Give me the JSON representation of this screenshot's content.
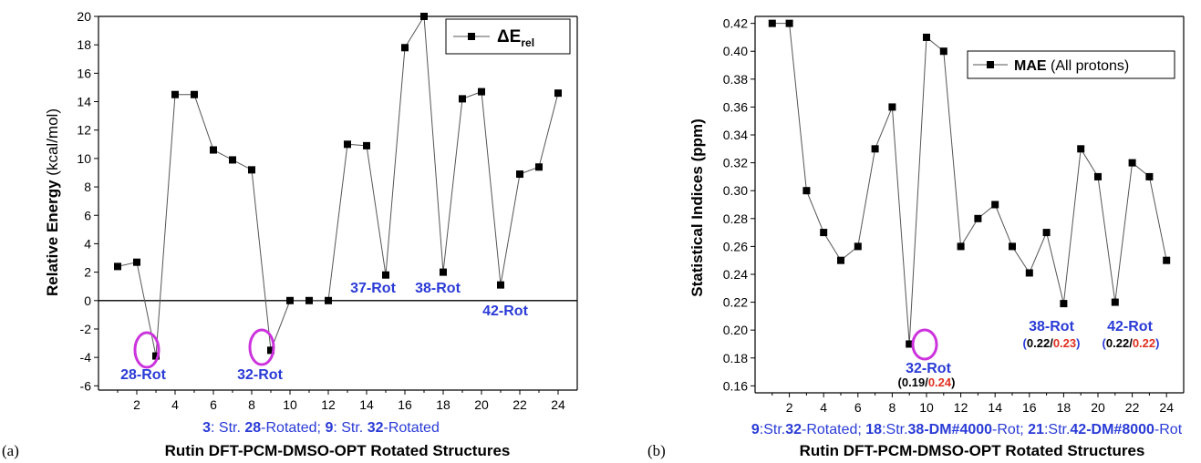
{
  "chart_data": [
    {
      "type": "line",
      "panel_label": "(a)",
      "xlabel": "Rutin DFT-PCM-DMSO-OPT Rotated Structures",
      "ylabel_bold": "Relative Energy",
      "ylabel_unit": "(kcal/mol)",
      "xlim": [
        0,
        25
      ],
      "ylim": [
        -6.3,
        20
      ],
      "xticks": [
        2,
        4,
        6,
        8,
        10,
        12,
        14,
        16,
        18,
        20,
        22,
        24
      ],
      "yticks": [
        -6,
        -4,
        -2,
        0,
        2,
        4,
        6,
        8,
        10,
        12,
        14,
        16,
        18,
        20
      ],
      "legend": {
        "main": "ΔE",
        "sub": "rel",
        "position": "top-right"
      },
      "series": [
        {
          "name": "ΔErel",
          "x": [
            1,
            2,
            3,
            4,
            5,
            6,
            7,
            8,
            9,
            10,
            11,
            12,
            13,
            14,
            15,
            16,
            17,
            18,
            19,
            20,
            21,
            22,
            23,
            24
          ],
          "y": [
            2.4,
            2.7,
            -3.9,
            14.5,
            14.5,
            10.6,
            9.9,
            9.2,
            -3.5,
            0,
            0,
            0,
            11.0,
            10.9,
            1.8,
            17.8,
            20.0,
            2.0,
            14.2,
            14.7,
            1.1,
            8.9,
            9.4,
            14.6
          ]
        }
      ],
      "reference_line": 0,
      "highlight_x": [
        3,
        9
      ],
      "annotations": [
        "28-Rot",
        "32-Rot",
        "37-Rot",
        "38-Rot",
        "42-Rot"
      ],
      "caption": {
        "n1": "3",
        "t1": ": Str. ",
        "n2": "28",
        "t2": "-Rotated;",
        "n3": "9",
        "t3": ": Str. ",
        "n4": "32",
        "t4": "-Rotated"
      }
    },
    {
      "type": "line",
      "panel_label": "(b)",
      "xlabel": "Rutin DFT-PCM-DMSO-OPT Rotated Structures",
      "ylabel": "Statistical Indices (ppm)",
      "xlim": [
        0,
        25
      ],
      "ylim": [
        0.155,
        0.425
      ],
      "xticks": [
        2,
        4,
        6,
        8,
        10,
        12,
        14,
        16,
        18,
        20,
        22,
        24
      ],
      "yticks": [
        0.16,
        0.18,
        0.2,
        0.22,
        0.24,
        0.26,
        0.28,
        0.3,
        0.32,
        0.34,
        0.36,
        0.38,
        0.4,
        0.42
      ],
      "legend": {
        "main": "MAE",
        "rest": " (All protons)",
        "position": "top-right"
      },
      "series": [
        {
          "name": "MAE (All protons)",
          "x": [
            1,
            2,
            3,
            4,
            5,
            6,
            7,
            8,
            9,
            10,
            11,
            12,
            13,
            14,
            15,
            16,
            17,
            18,
            19,
            20,
            21,
            22,
            23,
            24
          ],
          "y": [
            0.42,
            0.42,
            0.3,
            0.27,
            0.25,
            0.26,
            0.33,
            0.36,
            0.19,
            0.41,
            0.4,
            0.26,
            0.28,
            0.29,
            0.26,
            0.241,
            0.27,
            0.219,
            0.33,
            0.31,
            0.22,
            0.32,
            0.31,
            0.25
          ]
        }
      ],
      "highlight_x": [
        9
      ],
      "annotations": [
        {
          "label": "32-Rot",
          "v1": "0.19",
          "v2": "0.24"
        },
        {
          "label": "38-Rot",
          "v1": "0.22",
          "v2": "0.23"
        },
        {
          "label": "42-Rot",
          "v1": "0.22",
          "v2": "0.22"
        }
      ],
      "caption": {
        "n1": "9",
        "t1": ":Str.",
        "n2": "32",
        "t2": "-Rotated; ",
        "n3": "18",
        "t3": ":Str.",
        "n4": "38-DM#4000",
        "t4": "-Rot; ",
        "n5": "21",
        "t5": ":Str.",
        "n6": "42-DM#8000",
        "t6": "-Rot"
      }
    }
  ],
  "colors": {
    "line": "#555555",
    "marker": "#000000",
    "annotation": "#2a3bd6",
    "highlight": "#cc33dd",
    "red_value": "#e03020"
  }
}
